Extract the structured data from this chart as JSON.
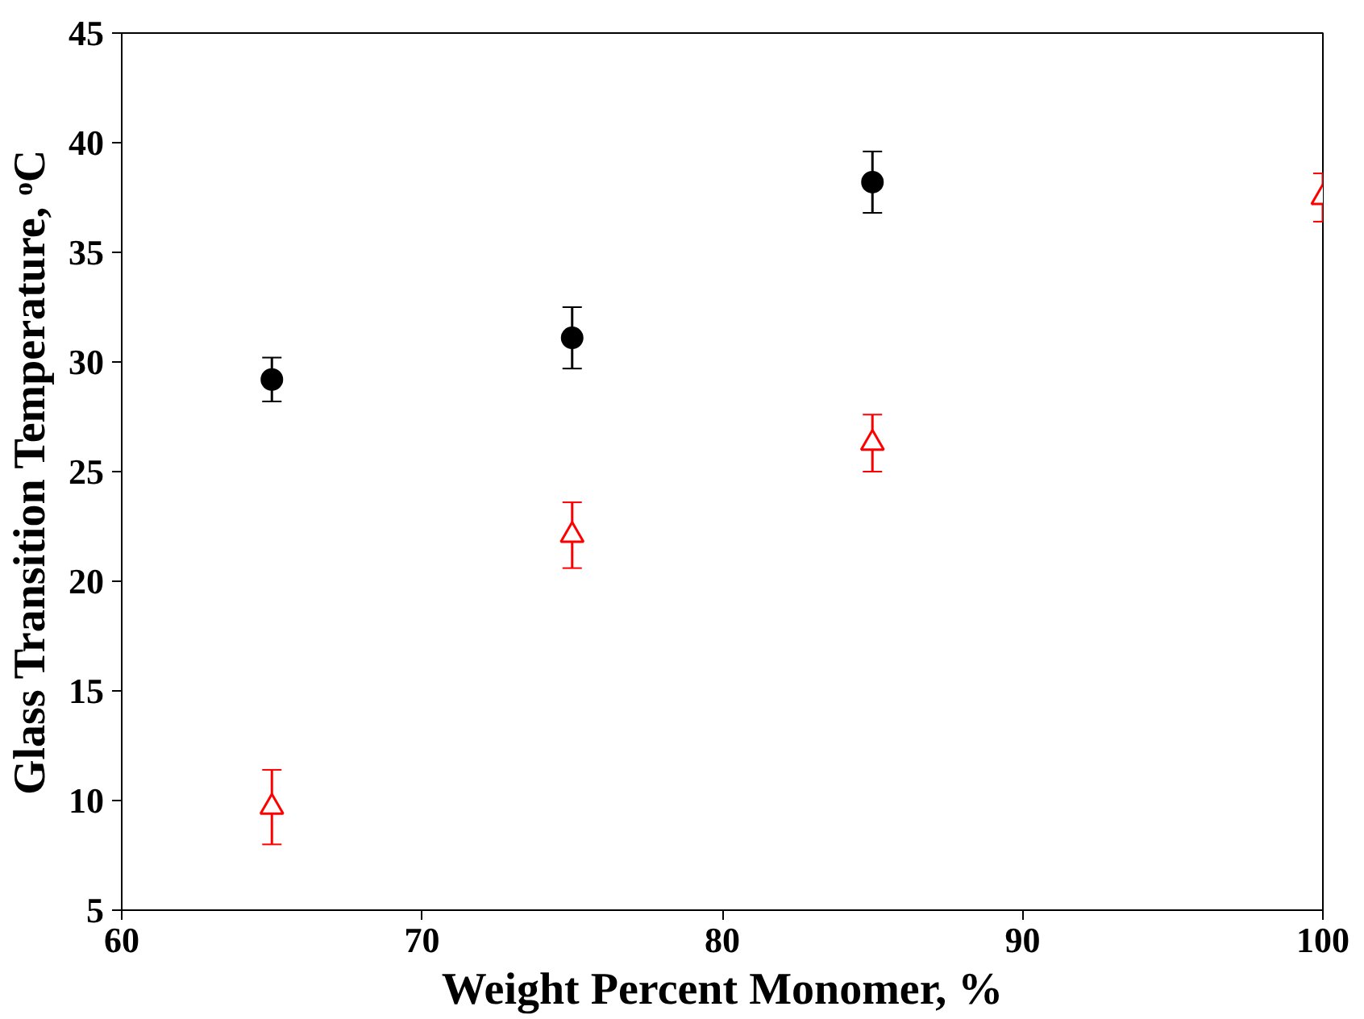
{
  "chart_data": {
    "type": "scatter",
    "xlabel": "Weight Percent Monomer, %",
    "ylabel": "Glass Transition Temperature, ᵒC",
    "xlim": [
      60,
      100
    ],
    "xticks": [
      60,
      70,
      80,
      90,
      100
    ],
    "ylim": [
      5,
      45
    ],
    "yticks": [
      5,
      10,
      15,
      20,
      25,
      30,
      35,
      40,
      45
    ],
    "grid": false,
    "series": [
      {
        "x": [
          65,
          75,
          85
        ],
        "values": [
          29.2,
          31.1,
          38.2
        ],
        "errors": [
          1.0,
          1.4,
          1.4
        ],
        "color": "#000000",
        "marker": "circle"
      },
      {
        "x": [
          65,
          75,
          85,
          100
        ],
        "values": [
          9.7,
          22.1,
          26.3,
          37.5
        ],
        "errors": [
          1.7,
          1.5,
          1.3,
          1.1
        ],
        "color": "#ff0000",
        "marker": "triangle"
      }
    ]
  }
}
